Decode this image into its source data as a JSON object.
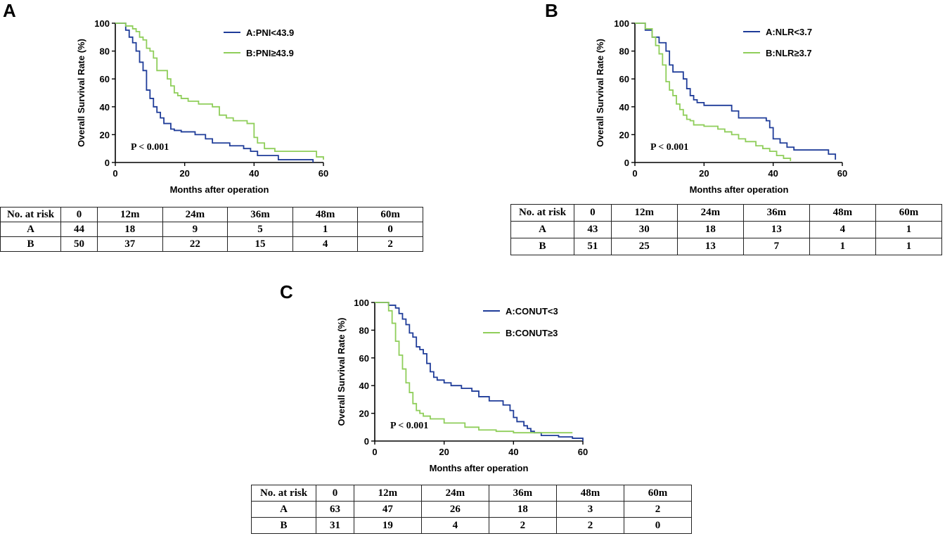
{
  "panels": [
    {
      "letter": "A"
    },
    {
      "letter": "B"
    },
    {
      "letter": "C"
    }
  ],
  "colors": {
    "groupA": "#1f3c99",
    "groupB": "#8fce5a",
    "axis": "#000000"
  },
  "chart_data": [
    {
      "type": "line",
      "title": "",
      "xlabel": "Months after operation",
      "ylabel": "Overall Survival Rate (%)",
      "xlim": [
        0,
        60
      ],
      "ylim": [
        0,
        100
      ],
      "xticks": [
        0,
        20,
        40,
        60
      ],
      "yticks": [
        0,
        20,
        40,
        60,
        80,
        100
      ],
      "pvalue": "P < 0.001",
      "series": [
        {
          "name": "A:PNI<43.9",
          "color": "#1f3c99",
          "x": [
            0,
            3,
            4,
            5,
            6,
            7,
            8,
            9,
            10,
            11,
            12,
            13,
            14,
            16,
            17,
            19,
            23,
            26,
            28,
            33,
            37,
            39,
            41,
            47,
            57
          ],
          "y": [
            100,
            95,
            90,
            86,
            80,
            72,
            66,
            52,
            46,
            40,
            36,
            32,
            28,
            24,
            23,
            22,
            20,
            17,
            14,
            12,
            10,
            8,
            5,
            2,
            0
          ]
        },
        {
          "name": "B:PNI≥43.9",
          "color": "#8fce5a",
          "x": [
            0,
            3,
            5,
            6,
            7,
            8,
            9,
            10,
            11,
            12,
            13,
            15,
            16,
            17,
            18,
            19,
            21,
            24,
            28,
            30,
            32,
            34,
            36,
            38,
            40,
            41,
            43,
            46,
            58,
            60
          ],
          "y": [
            100,
            98,
            96,
            94,
            90,
            88,
            82,
            80,
            75,
            66,
            66,
            60,
            55,
            50,
            48,
            46,
            44,
            42,
            40,
            34,
            32,
            30,
            30,
            28,
            18,
            14,
            10,
            8,
            4,
            2
          ]
        }
      ]
    },
    {
      "type": "line",
      "title": "",
      "xlabel": "Months after operation",
      "ylabel": "Overall Survival Rate (%)",
      "xlim": [
        0,
        60
      ],
      "ylim": [
        0,
        100
      ],
      "xticks": [
        0,
        20,
        40,
        60
      ],
      "yticks": [
        0,
        20,
        40,
        60,
        80,
        100
      ],
      "pvalue": "P < 0.001",
      "series": [
        {
          "name": "A:NLR<3.7",
          "color": "#1f3c99",
          "x": [
            0,
            3,
            5,
            7,
            9,
            10,
            11,
            12,
            14,
            15,
            16,
            17,
            18,
            20,
            22,
            28,
            30,
            38,
            39,
            40,
            42,
            44,
            46,
            48,
            56,
            58
          ],
          "y": [
            100,
            95,
            90,
            86,
            80,
            70,
            65,
            65,
            60,
            53,
            48,
            45,
            43,
            41,
            41,
            37,
            32,
            30,
            25,
            17,
            14,
            11,
            9,
            9,
            6,
            2
          ]
        },
        {
          "name": "B:NLR≥3.7",
          "color": "#8fce5a",
          "x": [
            0,
            3,
            5,
            6,
            7,
            8,
            9,
            10,
            11,
            12,
            13,
            14,
            15,
            16,
            17,
            20,
            24,
            26,
            28,
            30,
            32,
            35,
            37,
            39,
            41,
            43,
            45
          ],
          "y": [
            100,
            96,
            90,
            84,
            78,
            70,
            58,
            52,
            48,
            42,
            38,
            34,
            31,
            30,
            27,
            26,
            24,
            22,
            20,
            17,
            15,
            12,
            10,
            8,
            5,
            3,
            1
          ]
        }
      ]
    },
    {
      "type": "line",
      "title": "",
      "xlabel": "Months after operation",
      "ylabel": "Overall Survival Rate (%)",
      "xlim": [
        0,
        60
      ],
      "ylim": [
        0,
        100
      ],
      "xticks": [
        0,
        20,
        40,
        60
      ],
      "yticks": [
        0,
        20,
        40,
        60,
        80,
        100
      ],
      "pvalue": "P < 0.001",
      "series": [
        {
          "name": "A:CONUT<3",
          "color": "#1f3c99",
          "x": [
            0,
            4,
            6,
            7,
            8,
            9,
            10,
            11,
            12,
            13,
            14,
            15,
            16,
            17,
            18,
            20,
            22,
            25,
            28,
            30,
            33,
            37,
            39,
            40,
            41,
            43,
            44,
            45,
            46,
            48,
            53,
            57,
            60
          ],
          "y": [
            100,
            98,
            96,
            92,
            88,
            84,
            78,
            75,
            68,
            66,
            63,
            56,
            50,
            46,
            44,
            42,
            40,
            38,
            36,
            32,
            29,
            26,
            22,
            17,
            14,
            11,
            9,
            7,
            6,
            4,
            3,
            2,
            0
          ]
        },
        {
          "name": "B:CONUT≥3",
          "color": "#8fce5a",
          "x": [
            0,
            4,
            5,
            6,
            7,
            8,
            9,
            10,
            11,
            12,
            13,
            14,
            16,
            18,
            20,
            26,
            30,
            35,
            40,
            57
          ],
          "y": [
            100,
            94,
            85,
            72,
            62,
            52,
            42,
            35,
            27,
            22,
            20,
            18,
            16,
            16,
            13,
            10,
            8,
            7,
            6,
            6
          ]
        }
      ]
    }
  ],
  "risk_tables": [
    {
      "headers": [
        "No. at risk",
        "0",
        "12m",
        "24m",
        "36m",
        "48m",
        "60m"
      ],
      "rows": [
        [
          "A",
          "44",
          "18",
          "9",
          "5",
          "1",
          "0"
        ],
        [
          "B",
          "50",
          "37",
          "22",
          "15",
          "4",
          "2"
        ]
      ]
    },
    {
      "headers": [
        "No. at risk",
        "0",
        "12m",
        "24m",
        "36m",
        "48m",
        "60m"
      ],
      "rows": [
        [
          "A",
          "43",
          "30",
          "18",
          "13",
          "4",
          "1"
        ],
        [
          "B",
          "51",
          "25",
          "13",
          "7",
          "1",
          "1"
        ]
      ]
    },
    {
      "headers": [
        "No. at risk",
        "0",
        "12m",
        "24m",
        "36m",
        "48m",
        "60m"
      ],
      "rows": [
        [
          "A",
          "63",
          "47",
          "26",
          "18",
          "3",
          "2"
        ],
        [
          "B",
          "31",
          "19",
          "4",
          "2",
          "2",
          "0"
        ]
      ]
    }
  ]
}
